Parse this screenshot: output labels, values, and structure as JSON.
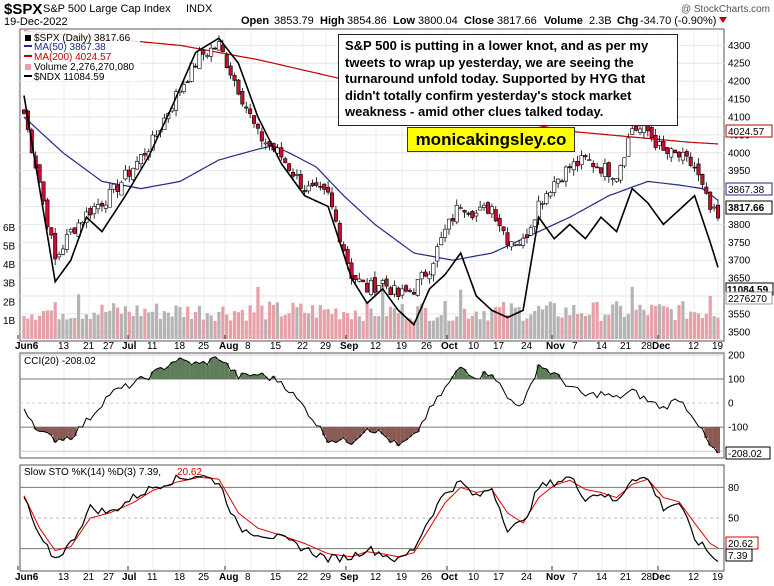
{
  "header": {
    "symbol": "$SPX",
    "name": "S&P 500 Large Cap Index",
    "exchange": "INDX",
    "date": "19-Dec-2022",
    "open_label": "Open",
    "open": "3853.79",
    "high_label": "High",
    "high": "3854.86",
    "low_label": "Low",
    "low": "3800.04",
    "close_label": "Close",
    "close": "3817.66",
    "volume_label": "Volume",
    "volume": "2.3B",
    "chg_label": "Chg",
    "chg": "-34.70 (-0.90%)",
    "watermark": "@ StockCharts.com"
  },
  "legend": {
    "price": "$SPX (Daily) 3817.66",
    "ma50": "MA(50) 3867.38",
    "ma200": "MA(200) 4024.57",
    "volume": "Volume 2,276,270,080",
    "ndx": "$NDX 11084.59"
  },
  "annotation": "S&P 500 is putting in a lower knot, and as per my tweets to wrap up yesterday, we are seeing the turnaround unfold today. Supported by HYG that didn't totally confirm yesterday's stock market weakness - amid other clues talked today.",
  "brand": "monicakingsley.co",
  "badges": {
    "ma200": "4024.57",
    "ma50": "3867.38",
    "close": "3817.66",
    "ndx": "11084.59",
    "volume": "2276270"
  },
  "cci_legend": "CCI(20) -208.02",
  "cci_badge": "-208.02",
  "sto_legend_prefix": "Slow STO %K(14) %D(3) 7.39,",
  "sto_legend_d": "20.62",
  "sto_badge_d": "20.62",
  "sto_badge_k": "7.39",
  "colors": {
    "up": "#ffffff",
    "down": "#c8102e",
    "ma50": "#1f2a8c",
    "ma200": "#c00000",
    "ndx": "#000000",
    "vol_down": "#e8a0a8",
    "vol_up": "#b4b4b4",
    "cci_pos": "#5f7d5a",
    "cci_neg": "#8a5a55",
    "sto_d": "#e00000"
  },
  "chart_data": [
    {
      "type": "candlestick",
      "title": "$SPX S&P 500 Large Cap Index INDX",
      "ylim": [
        3480,
        4340
      ],
      "y_ticks": [
        3500,
        3550,
        3600,
        3650,
        3700,
        3750,
        3800,
        3850,
        3900,
        3950,
        4000,
        4050,
        4100,
        4150,
        4200,
        4250,
        4300
      ],
      "volume_ticks": [
        "1B",
        "2B",
        "3B",
        "4B",
        "5B",
        "6B"
      ],
      "x_labels": [
        "Jun6",
        "13",
        "21",
        "27",
        "Jul",
        "11",
        "18",
        "25",
        "Aug",
        "8",
        "15",
        "22",
        "29",
        "Sep",
        "12",
        "19",
        "26",
        "Oct",
        "10",
        "17",
        "24",
        "Nov",
        "7",
        "14",
        "21",
        "28",
        "Dec",
        "12",
        "19"
      ],
      "price_keypoints": [
        [
          0,
          4110
        ],
        [
          4,
          3920
        ],
        [
          8,
          3700
        ],
        [
          12,
          3780
        ],
        [
          17,
          3840
        ],
        [
          22,
          3880
        ],
        [
          28,
          3960
        ],
        [
          33,
          4030
        ],
        [
          39,
          4160
        ],
        [
          45,
          4270
        ],
        [
          50,
          4300
        ],
        [
          55,
          4180
        ],
        [
          60,
          4050
        ],
        [
          66,
          3990
        ],
        [
          72,
          3900
        ],
        [
          78,
          3880
        ],
        [
          84,
          3660
        ],
        [
          88,
          3620
        ],
        [
          92,
          3640
        ],
        [
          96,
          3600
        ],
        [
          100,
          3620
        ],
        [
          104,
          3680
        ],
        [
          108,
          3780
        ],
        [
          112,
          3860
        ],
        [
          116,
          3830
        ],
        [
          120,
          3850
        ],
        [
          124,
          3760
        ],
        [
          128,
          3750
        ],
        [
          132,
          3860
        ],
        [
          136,
          3920
        ],
        [
          140,
          3960
        ],
        [
          144,
          3980
        ],
        [
          148,
          3960
        ],
        [
          152,
          3940
        ],
        [
          156,
          4070
        ],
        [
          160,
          4060
        ],
        [
          164,
          4000
        ],
        [
          168,
          3990
        ],
        [
          172,
          3960
        ],
        [
          176,
          3840
        ],
        [
          178,
          3817.66
        ]
      ],
      "ma50_keypoints": [
        [
          0,
          4100
        ],
        [
          10,
          4000
        ],
        [
          20,
          3920
        ],
        [
          30,
          3900
        ],
        [
          40,
          3920
        ],
        [
          50,
          3980
        ],
        [
          60,
          4010
        ],
        [
          64,
          4020
        ],
        [
          68,
          4000
        ],
        [
          75,
          3960
        ],
        [
          82,
          3880
        ],
        [
          90,
          3800
        ],
        [
          100,
          3720
        ],
        [
          110,
          3700
        ],
        [
          120,
          3720
        ],
        [
          130,
          3770
        ],
        [
          140,
          3820
        ],
        [
          150,
          3880
        ],
        [
          160,
          3920
        ],
        [
          168,
          3910
        ],
        [
          174,
          3900
        ],
        [
          178,
          3867.38
        ]
      ],
      "ma200_keypoints": [
        [
          0,
          4340
        ],
        [
          20,
          4320
        ],
        [
          40,
          4300
        ],
        [
          60,
          4260
        ],
        [
          80,
          4210
        ],
        [
          100,
          4150
        ],
        [
          120,
          4100
        ],
        [
          140,
          4060
        ],
        [
          160,
          4040
        ],
        [
          170,
          4030
        ],
        [
          178,
          4024.57
        ]
      ],
      "ndx_keypoints": [
        [
          0,
          4160
        ],
        [
          4,
          3900
        ],
        [
          8,
          3640
        ],
        [
          12,
          3700
        ],
        [
          16,
          3820
        ],
        [
          20,
          3780
        ],
        [
          26,
          3880
        ],
        [
          32,
          3990
        ],
        [
          38,
          4130
        ],
        [
          44,
          4280
        ],
        [
          50,
          4320
        ],
        [
          55,
          4250
        ],
        [
          60,
          4100
        ],
        [
          66,
          3970
        ],
        [
          72,
          3880
        ],
        [
          78,
          3850
        ],
        [
          84,
          3650
        ],
        [
          88,
          3580
        ],
        [
          92,
          3620
        ],
        [
          96,
          3560
        ],
        [
          100,
          3520
        ],
        [
          104,
          3620
        ],
        [
          108,
          3660
        ],
        [
          112,
          3720
        ],
        [
          116,
          3600
        ],
        [
          120,
          3560
        ],
        [
          124,
          3540
        ],
        [
          128,
          3560
        ],
        [
          132,
          3820
        ],
        [
          136,
          3760
        ],
        [
          140,
          3800
        ],
        [
          144,
          3760
        ],
        [
          148,
          3820
        ],
        [
          152,
          3780
        ],
        [
          156,
          3900
        ],
        [
          160,
          3860
        ],
        [
          164,
          3800
        ],
        [
          168,
          3840
        ],
        [
          172,
          3880
        ],
        [
          176,
          3750
        ],
        [
          178,
          3680
        ]
      ]
    },
    {
      "type": "line",
      "title": "CCI(20) -208.02",
      "ylim": [
        -220,
        200
      ],
      "y_ticks": [
        200,
        100,
        0,
        -100,
        -200
      ],
      "keypoints": [
        [
          0,
          -20
        ],
        [
          4,
          -120
        ],
        [
          8,
          -150
        ],
        [
          12,
          -140
        ],
        [
          17,
          -60
        ],
        [
          22,
          40
        ],
        [
          28,
          80
        ],
        [
          33,
          120
        ],
        [
          39,
          180
        ],
        [
          45,
          160
        ],
        [
          50,
          190
        ],
        [
          55,
          110
        ],
        [
          60,
          120
        ],
        [
          66,
          90
        ],
        [
          72,
          -20
        ],
        [
          78,
          -150
        ],
        [
          84,
          -160
        ],
        [
          88,
          -100
        ],
        [
          92,
          -130
        ],
        [
          96,
          -180
        ],
        [
          100,
          -140
        ],
        [
          104,
          -30
        ],
        [
          108,
          60
        ],
        [
          112,
          150
        ],
        [
          116,
          110
        ],
        [
          120,
          130
        ],
        [
          124,
          20
        ],
        [
          128,
          -10
        ],
        [
          132,
          160
        ],
        [
          136,
          120
        ],
        [
          140,
          70
        ],
        [
          144,
          30
        ],
        [
          148,
          40
        ],
        [
          152,
          20
        ],
        [
          156,
          50
        ],
        [
          160,
          10
        ],
        [
          164,
          -20
        ],
        [
          168,
          20
        ],
        [
          172,
          -60
        ],
        [
          176,
          -180
        ],
        [
          178,
          -208.02
        ]
      ]
    },
    {
      "type": "line",
      "title": "Slow STO %K(14) %D(3) 7.39, 20.62",
      "ylim": [
        0,
        100
      ],
      "y_ticks": [
        80,
        50,
        20
      ],
      "k_keypoints": [
        [
          0,
          70
        ],
        [
          4,
          30
        ],
        [
          8,
          10
        ],
        [
          12,
          25
        ],
        [
          17,
          60
        ],
        [
          22,
          55
        ],
        [
          28,
          70
        ],
        [
          33,
          80
        ],
        [
          39,
          88
        ],
        [
          45,
          92
        ],
        [
          50,
          85
        ],
        [
          55,
          40
        ],
        [
          60,
          35
        ],
        [
          66,
          30
        ],
        [
          72,
          20
        ],
        [
          78,
          10
        ],
        [
          84,
          12
        ],
        [
          88,
          20
        ],
        [
          92,
          15
        ],
        [
          96,
          8
        ],
        [
          100,
          20
        ],
        [
          104,
          50
        ],
        [
          108,
          75
        ],
        [
          112,
          85
        ],
        [
          116,
          70
        ],
        [
          120,
          80
        ],
        [
          124,
          40
        ],
        [
          128,
          45
        ],
        [
          132,
          80
        ],
        [
          136,
          85
        ],
        [
          140,
          90
        ],
        [
          144,
          70
        ],
        [
          148,
          75
        ],
        [
          152,
          65
        ],
        [
          156,
          90
        ],
        [
          160,
          88
        ],
        [
          164,
          60
        ],
        [
          168,
          65
        ],
        [
          172,
          30
        ],
        [
          176,
          15
        ],
        [
          178,
          7.39
        ]
      ],
      "d_keypoints": [
        [
          0,
          72
        ],
        [
          4,
          40
        ],
        [
          8,
          18
        ],
        [
          12,
          22
        ],
        [
          17,
          50
        ],
        [
          22,
          55
        ],
        [
          28,
          65
        ],
        [
          33,
          77
        ],
        [
          39,
          85
        ],
        [
          45,
          90
        ],
        [
          50,
          88
        ],
        [
          55,
          55
        ],
        [
          60,
          40
        ],
        [
          66,
          33
        ],
        [
          72,
          25
        ],
        [
          78,
          15
        ],
        [
          84,
          12
        ],
        [
          88,
          17
        ],
        [
          92,
          15
        ],
        [
          96,
          12
        ],
        [
          100,
          16
        ],
        [
          104,
          40
        ],
        [
          108,
          65
        ],
        [
          112,
          80
        ],
        [
          116,
          75
        ],
        [
          120,
          78
        ],
        [
          124,
          55
        ],
        [
          128,
          45
        ],
        [
          132,
          70
        ],
        [
          136,
          82
        ],
        [
          140,
          87
        ],
        [
          144,
          78
        ],
        [
          148,
          75
        ],
        [
          152,
          70
        ],
        [
          156,
          83
        ],
        [
          160,
          88
        ],
        [
          164,
          70
        ],
        [
          168,
          66
        ],
        [
          172,
          45
        ],
        [
          176,
          25
        ],
        [
          178,
          20.62
        ]
      ]
    }
  ]
}
